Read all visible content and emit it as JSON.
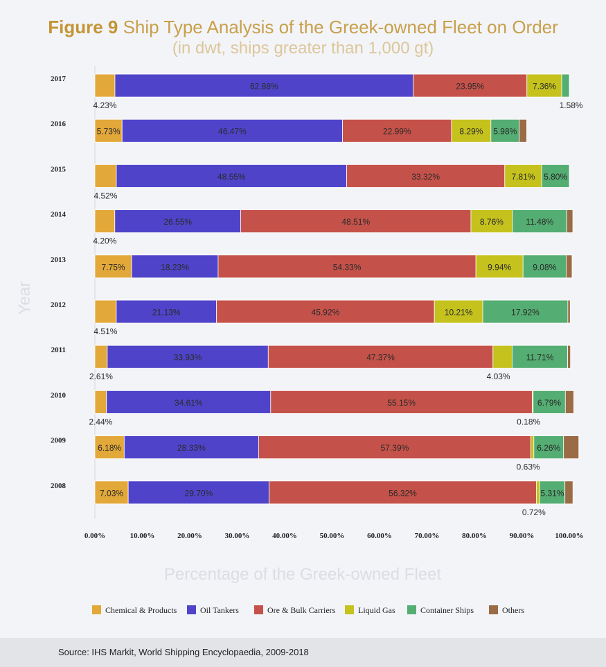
{
  "title_bold": "Figure 9",
  "title_rest": " Ship Type Analysis of the Greek-owned Fleet on Order",
  "subtitle": "(in dwt, ships greater than 1,000 gt)",
  "source": "Source: IHS Markit, World Shipping Encyclopaedia, 2009-2018",
  "chart_data": {
    "type": "bar",
    "orientation": "horizontal",
    "stacked": "percent",
    "xlabel": "Percentage of the Greek-owned Fleet",
    "ylabel": "Year",
    "xlim": [
      0,
      100
    ],
    "xticks": [
      "0.00%",
      "10.00%",
      "20.00%",
      "30.00%",
      "40.00%",
      "50.00%",
      "60.00%",
      "70.00%",
      "80.00%",
      "90.00%",
      "100.00%"
    ],
    "legend_position": "bottom",
    "categories": [
      "2017",
      "2016",
      "2015",
      "2014",
      "2013",
      "2012",
      "2011",
      "2010",
      "2009",
      "2008"
    ],
    "series": [
      {
        "name": "Chemical & Products",
        "color": "#e2a83a",
        "values": [
          4.23,
          5.73,
          4.52,
          4.2,
          7.75,
          4.51,
          2.61,
          2.44,
          6.18,
          7.03
        ],
        "labels": [
          "4.23%",
          "5.73%",
          "4.52%",
          "4.20%",
          "7.75%",
          "4.51%",
          "2.61%",
          "2.44%",
          "6.18%",
          "7.03%"
        ]
      },
      {
        "name": "Oil Tankers",
        "color": "#4f44c9",
        "values": [
          62.88,
          46.47,
          48.55,
          26.55,
          18.23,
          21.13,
          33.93,
          34.61,
          28.33,
          29.7
        ],
        "labels": [
          "62.88%",
          "46.47%",
          "48.55%",
          "26.55%",
          "18.23%",
          "21.13%",
          "33.93%",
          "34.61%",
          "28.33%",
          "29.70%"
        ]
      },
      {
        "name": "Ore & Bulk Carriers",
        "color": "#c5524a",
        "values": [
          23.95,
          22.99,
          33.32,
          48.51,
          54.33,
          45.92,
          47.37,
          55.15,
          57.39,
          56.32
        ],
        "labels": [
          "23.95%",
          "22.99%",
          "33.32%",
          "48.51%",
          "54.33%",
          "45.92%",
          "47.37%",
          "55.15%",
          "57.39%",
          "56.32%"
        ]
      },
      {
        "name": "Liquid Gas",
        "color": "#c5c21e",
        "values": [
          7.36,
          8.29,
          7.81,
          8.76,
          9.94,
          10.21,
          4.03,
          0.18,
          0.63,
          0.72
        ],
        "labels": [
          "7.36%",
          "8.29%",
          "7.81%",
          "8.76%",
          "9.94%",
          "10.21%",
          "4.03%",
          "0.18%",
          "0.63%",
          "0.72%"
        ]
      },
      {
        "name": "Container Ships",
        "color": "#54ad72",
        "values": [
          1.58,
          5.98,
          5.8,
          11.48,
          9.08,
          17.92,
          11.71,
          6.79,
          6.26,
          5.31
        ],
        "labels": [
          "1.58%",
          "5.98%",
          "5.80%",
          "11.48%",
          "9.08%",
          "17.92%",
          "11.71%",
          "6.79%",
          "6.26%",
          "5.31%"
        ]
      },
      {
        "name": "Others",
        "color": "#9a6b45",
        "values": [
          0.0,
          1.56,
          0.0,
          1.24,
          1.25,
          0.5,
          0.6,
          1.77,
          3.21,
          1.68
        ],
        "labels": [
          "",
          "",
          "",
          "",
          "",
          "",
          "",
          "",
          "",
          ""
        ]
      }
    ]
  }
}
